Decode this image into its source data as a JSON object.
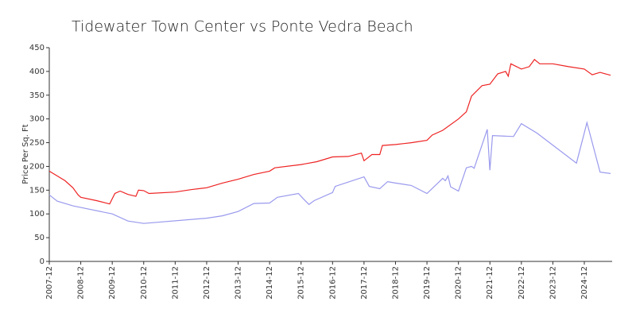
{
  "chart_data": {
    "type": "line",
    "title": "Tidewater Town Center vs Ponte Vedra Beach",
    "y_label": "Price Per Sq. Ft",
    "ylim": [
      0,
      450
    ],
    "yticks": [
      0,
      50,
      100,
      150,
      200,
      250,
      300,
      350,
      400,
      450
    ],
    "xticks": [
      "2007-12",
      "2008-12",
      "2009-12",
      "2010-12",
      "2011-12",
      "2012-12",
      "2013-12",
      "2014-12",
      "2015-12",
      "2016-12",
      "2017-12",
      "2018-12",
      "2019-12",
      "2020-12",
      "2021-12",
      "2022-12",
      "2023-12",
      "2024-12"
    ],
    "grid": false,
    "series": [
      {
        "color": "#ee2222",
        "x": [
          "2007-12",
          "2008-03",
          "2008-06",
          "2008-09",
          "2008-11",
          "2008-12",
          "2009-06",
          "2009-11",
          "2010-01",
          "2010-03",
          "2010-06",
          "2010-09",
          "2010-10",
          "2010-12",
          "2011-02",
          "2011-12",
          "2012-06",
          "2012-12",
          "2013-06",
          "2013-12",
          "2014-06",
          "2014-12",
          "2015-02",
          "2015-12",
          "2016-06",
          "2016-12",
          "2017-06",
          "2017-11",
          "2017-12",
          "2018-03",
          "2018-06",
          "2018-07",
          "2018-12",
          "2019-06",
          "2019-12",
          "2020-02",
          "2020-06",
          "2020-12",
          "2021-03",
          "2021-05",
          "2021-09",
          "2021-12",
          "2022-03",
          "2022-06",
          "2022-07",
          "2022-08",
          "2022-12",
          "2023-03",
          "2023-05",
          "2023-07",
          "2023-12",
          "2024-06",
          "2024-12",
          "2025-03",
          "2025-06",
          "2025-10"
        ],
        "values": [
          190,
          180,
          170,
          155,
          140,
          135,
          128,
          121,
          143,
          148,
          141,
          137,
          150,
          149,
          143,
          146,
          151,
          155,
          165,
          173,
          183,
          190,
          197,
          204,
          210,
          220,
          221,
          228,
          212,
          225,
          225,
          244,
          246,
          250,
          255,
          266,
          276,
          300,
          315,
          348,
          370,
          373,
          395,
          400,
          390,
          416,
          405,
          410,
          425,
          416,
          416,
          410,
          405,
          393,
          398,
          392
        ]
      },
      {
        "color": "#9999ee",
        "x": [
          "2007-12",
          "2008-03",
          "2008-09",
          "2009-12",
          "2010-06",
          "2010-12",
          "2012-12",
          "2013-06",
          "2013-12",
          "2014-06",
          "2014-12",
          "2015-03",
          "2015-11",
          "2016-01",
          "2016-03",
          "2016-05",
          "2016-12",
          "2017-01",
          "2017-12",
          "2018-02",
          "2018-06",
          "2018-09",
          "2018-12",
          "2019-06",
          "2019-12",
          "2020-06",
          "2020-07",
          "2020-08",
          "2020-09",
          "2020-12",
          "2021-03",
          "2021-05",
          "2021-06",
          "2021-11",
          "2021-12",
          "2022-01",
          "2022-09",
          "2022-12",
          "2023-06",
          "2024-09",
          "2025-01",
          "2025-06",
          "2025-10"
        ],
        "values": [
          140,
          127,
          117,
          100,
          85,
          80,
          91,
          96,
          105,
          122,
          123,
          135,
          143,
          131,
          120,
          128,
          145,
          158,
          178,
          158,
          153,
          168,
          165,
          160,
          143,
          175,
          170,
          180,
          157,
          148,
          197,
          200,
          196,
          278,
          192,
          265,
          263,
          290,
          270,
          207,
          292,
          188,
          185
        ]
      }
    ]
  }
}
